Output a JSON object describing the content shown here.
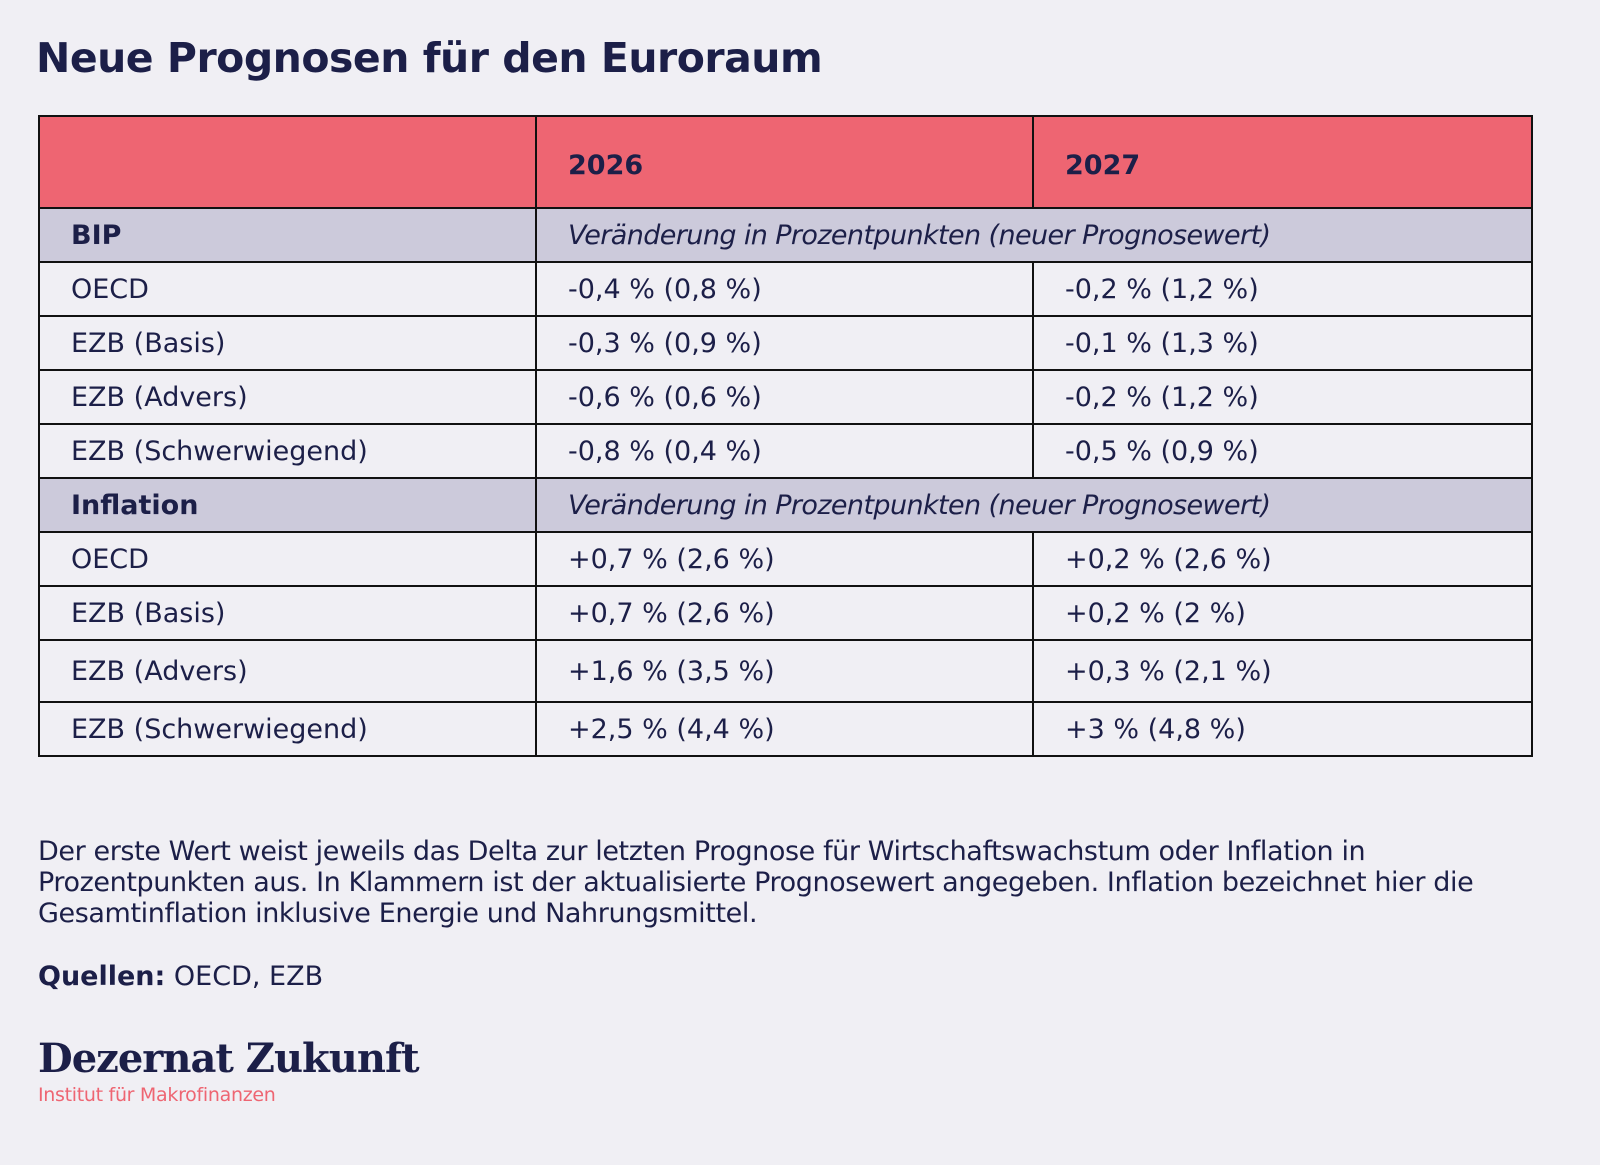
{
  "title": "Neue Prognosen für den Euroraum",
  "table": {
    "header": [
      "",
      "2026",
      "2027"
    ],
    "sections": [
      {
        "label": "BIP",
        "note": "Veränderung in Prozentpunkten (neuer Prognosewert)",
        "rows": [
          {
            "label": "OECD",
            "y2026": "-0,4 % (0,8 %)",
            "y2027": "-0,2 % (1,2 %)"
          },
          {
            "label": "EZB (Basis)",
            "y2026": "-0,3 % (0,9 %)",
            "y2027": "-0,1 % (1,3 %)"
          },
          {
            "label": "EZB (Advers)",
            "y2026": "-0,6 % (0,6 %)",
            "y2027": "-0,2 % (1,2 %)"
          },
          {
            "label": "EZB (Schwerwiegend)",
            "y2026": "-0,8 % (0,4 %)",
            "y2027": "-0,5 % (0,9 %)"
          }
        ]
      },
      {
        "label": "Inflation",
        "note": "Veränderung in Prozentpunkten (neuer Prognosewert)",
        "rows": [
          {
            "label": "OECD",
            "y2026": "+0,7 % (2,6 %)",
            "y2027": "+0,2 % (2,6 %)"
          },
          {
            "label": "EZB (Basis)",
            "y2026": "+0,7 % (2,6 %)",
            "y2027": "+0,2 % (2 %)"
          },
          {
            "label": "EZB (Advers)",
            "y2026": "+1,6 % (3,5 %)",
            "y2027": "+0,3 % (2,1 %)"
          },
          {
            "label": "EZB (Schwerwiegend)",
            "y2026": "+2,5 % (4,4 %)",
            "y2027": "+3 % (4,8 %)"
          }
        ]
      }
    ]
  },
  "footnote": "Der erste Wert weist jeweils das Delta zur letzten Prognose für Wirtschaftswachstum oder Inflation in Prozentpunkten aus. In Klammern ist der aktualisierte Prognosewert angegeben. Inflation bezeichnet hier die Gesamtinflation inklusive Energie und Nahrungsmittel.",
  "sources": {
    "label": "Quellen:",
    "value": " OECD, EZB"
  },
  "logo": {
    "name": "Dezernat Zukunft",
    "subtitle": "Institut für Makrofinanzen"
  },
  "colors": {
    "header_bg": "#ee6572",
    "section_bg": "#cccadb",
    "text": "#1c1f48",
    "background": "#f0eff4"
  }
}
